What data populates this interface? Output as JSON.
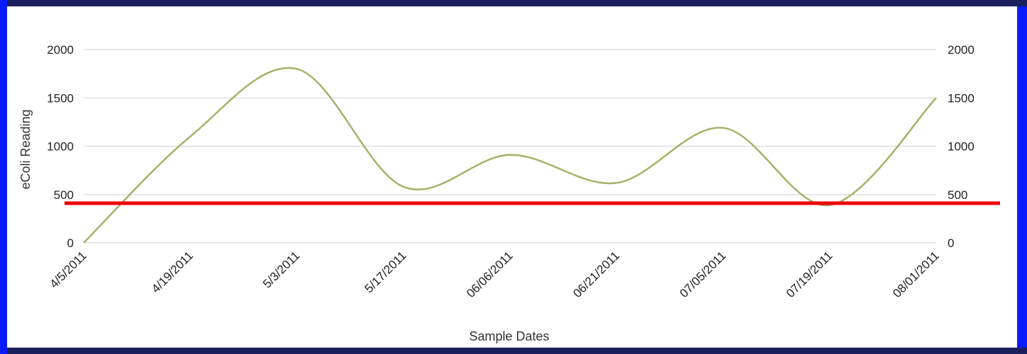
{
  "chart_data": {
    "type": "line",
    "title": "",
    "xlabel": "Sample Dates",
    "ylabel": "eColi Reading",
    "categories": [
      "4/5/2011",
      "4/19/2011",
      "5/3/2011",
      "5/17/2011",
      "06/06/2011",
      "06/21/2011",
      "07/05/2011",
      "07/19/2011",
      "08/01/2011"
    ],
    "series": [
      {
        "values": [
          0,
          1100,
          1800,
          580,
          910,
          620,
          1190,
          390,
          1500
        ],
        "color": "#a8b06a"
      }
    ],
    "ylim": [
      0,
      2000
    ],
    "yticks": [
      0,
      500,
      1000,
      1500,
      2000
    ],
    "right_axis_ticks": [
      0,
      500,
      1000,
      1500,
      2000
    ],
    "threshold": {
      "value": 410,
      "color": "#ee0000"
    },
    "grid": true,
    "legend": "none",
    "smooth": true
  }
}
